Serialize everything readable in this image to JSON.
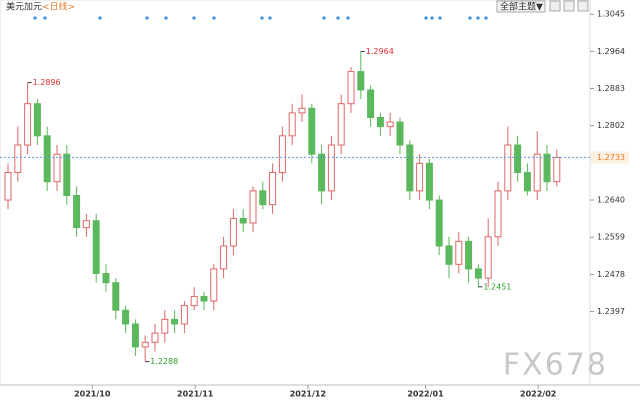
{
  "chart_data": {
    "type": "candlestick",
    "title": "美元加元",
    "period": "<日线>",
    "button": "全部主题▼",
    "watermark": "FX678",
    "up_color": "#e06666",
    "down_color": "#5cb85c",
    "open": [
      1.264,
      1.27,
      1.276,
      1.285,
      1.278,
      1.268,
      1.274,
      1.265,
      1.258,
      1.2595,
      1.248,
      1.246,
      1.24,
      1.237,
      1.232,
      1.233,
      1.235,
      1.238,
      1.237,
      1.241,
      1.243,
      1.242,
      1.249,
      1.254,
      1.26,
      1.259,
      1.266,
      1.263,
      1.27,
      1.278,
      1.283,
      1.284,
      1.274,
      1.266,
      1.276,
      1.285,
      1.292,
      1.288,
      1.282,
      1.28,
      1.281,
      1.276,
      1.266,
      1.272,
      1.264,
      1.254,
      1.25,
      1.255,
      1.249,
      1.247,
      1.256,
      1.266,
      1.276,
      1.27,
      1.266,
      1.274,
      1.268
    ],
    "high": [
      1.272,
      1.28,
      1.2896,
      1.286,
      1.28,
      1.276,
      1.276,
      1.267,
      1.261,
      1.261,
      1.25,
      1.247,
      1.241,
      1.238,
      1.2345,
      1.237,
      1.24,
      1.24,
      1.242,
      1.245,
      1.244,
      1.25,
      1.256,
      1.262,
      1.262,
      1.267,
      1.268,
      1.272,
      1.28,
      1.285,
      1.287,
      1.285,
      1.276,
      1.278,
      1.287,
      1.293,
      1.2964,
      1.289,
      1.283,
      1.283,
      1.282,
      1.277,
      1.274,
      1.273,
      1.265,
      1.256,
      1.257,
      1.256,
      1.25,
      1.26,
      1.268,
      1.28,
      1.278,
      1.272,
      1.279,
      1.276,
      1.275
    ],
    "low": [
      1.262,
      1.268,
      1.274,
      1.276,
      1.266,
      1.266,
      1.263,
      1.256,
      1.256,
      1.246,
      1.244,
      1.238,
      1.235,
      1.23,
      1.2288,
      1.231,
      1.233,
      1.235,
      1.235,
      1.24,
      1.24,
      1.24,
      1.247,
      1.252,
      1.257,
      1.257,
      1.262,
      1.261,
      1.268,
      1.276,
      1.281,
      1.272,
      1.263,
      1.264,
      1.274,
      1.283,
      1.286,
      1.28,
      1.278,
      1.278,
      1.274,
      1.264,
      1.264,
      1.262,
      1.252,
      1.247,
      1.248,
      1.246,
      1.2451,
      1.245,
      1.254,
      1.264,
      1.268,
      1.265,
      1.264,
      1.266,
      1.267
    ],
    "close": [
      1.27,
      1.276,
      1.285,
      1.278,
      1.268,
      1.274,
      1.265,
      1.258,
      1.2595,
      1.248,
      1.246,
      1.24,
      1.237,
      1.232,
      1.233,
      1.235,
      1.238,
      1.237,
      1.241,
      1.243,
      1.242,
      1.249,
      1.254,
      1.26,
      1.259,
      1.266,
      1.263,
      1.27,
      1.278,
      1.283,
      1.284,
      1.274,
      1.266,
      1.276,
      1.285,
      1.292,
      1.288,
      1.282,
      1.28,
      1.281,
      1.276,
      1.266,
      1.272,
      1.264,
      1.254,
      1.25,
      1.255,
      1.249,
      1.247,
      1.256,
      1.266,
      1.276,
      1.27,
      1.266,
      1.274,
      1.268,
      1.2733
    ],
    "annotated_highs": [
      2,
      36
    ],
    "annotated_lows": [
      14,
      48
    ],
    "ylim": [
      1.2237,
      1.3076
    ],
    "yticks": [
      1.3045,
      1.2964,
      1.2883,
      1.2802,
      {
        "value": 1.264,
        "label": "1.2640"
      },
      1.2559,
      1.2478,
      1.2397
    ],
    "xticks": [
      {
        "value": 8.6,
        "label": "2021/10"
      },
      {
        "value": 19.1,
        "label": "2021/11"
      },
      {
        "value": 30.6,
        "label": "2021/12"
      },
      {
        "value": 42.6,
        "label": "2022/01"
      },
      {
        "value": 54.1,
        "label": "2022/02"
      }
    ]
  }
}
